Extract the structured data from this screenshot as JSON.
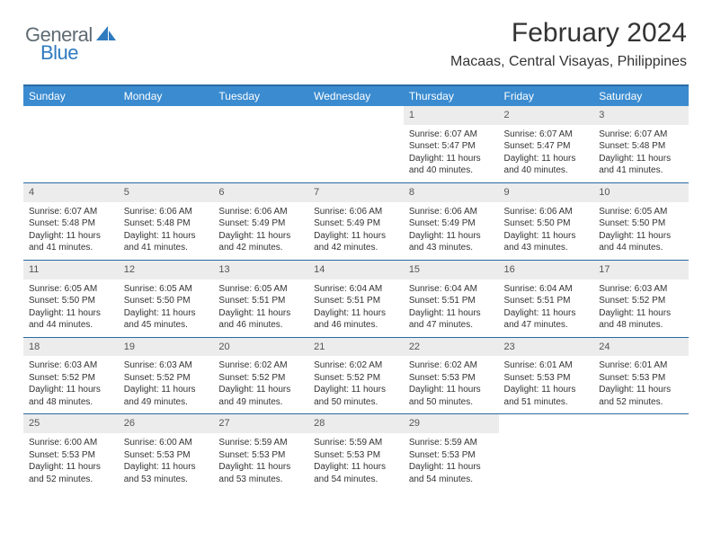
{
  "logo": {
    "general": "General",
    "blue": "Blue"
  },
  "title": "February 2024",
  "location": "Macaas, Central Visayas, Philippines",
  "colors": {
    "header_bg": "#3a8bd0",
    "header_border": "#2a6aa3",
    "daynum_bg": "#ececec",
    "text": "#333333",
    "logo_gray": "#5f6b73",
    "logo_blue": "#2f7bbf"
  },
  "weekdays": [
    "Sunday",
    "Monday",
    "Tuesday",
    "Wednesday",
    "Thursday",
    "Friday",
    "Saturday"
  ],
  "weeks": [
    {
      "nums": [
        "",
        "",
        "",
        "",
        "1",
        "2",
        "3"
      ],
      "cells": [
        null,
        null,
        null,
        null,
        {
          "sunrise": "Sunrise: 6:07 AM",
          "sunset": "Sunset: 5:47 PM",
          "day1": "Daylight: 11 hours",
          "day2": "and 40 minutes."
        },
        {
          "sunrise": "Sunrise: 6:07 AM",
          "sunset": "Sunset: 5:47 PM",
          "day1": "Daylight: 11 hours",
          "day2": "and 40 minutes."
        },
        {
          "sunrise": "Sunrise: 6:07 AM",
          "sunset": "Sunset: 5:48 PM",
          "day1": "Daylight: 11 hours",
          "day2": "and 41 minutes."
        }
      ]
    },
    {
      "nums": [
        "4",
        "5",
        "6",
        "7",
        "8",
        "9",
        "10"
      ],
      "cells": [
        {
          "sunrise": "Sunrise: 6:07 AM",
          "sunset": "Sunset: 5:48 PM",
          "day1": "Daylight: 11 hours",
          "day2": "and 41 minutes."
        },
        {
          "sunrise": "Sunrise: 6:06 AM",
          "sunset": "Sunset: 5:48 PM",
          "day1": "Daylight: 11 hours",
          "day2": "and 41 minutes."
        },
        {
          "sunrise": "Sunrise: 6:06 AM",
          "sunset": "Sunset: 5:49 PM",
          "day1": "Daylight: 11 hours",
          "day2": "and 42 minutes."
        },
        {
          "sunrise": "Sunrise: 6:06 AM",
          "sunset": "Sunset: 5:49 PM",
          "day1": "Daylight: 11 hours",
          "day2": "and 42 minutes."
        },
        {
          "sunrise": "Sunrise: 6:06 AM",
          "sunset": "Sunset: 5:49 PM",
          "day1": "Daylight: 11 hours",
          "day2": "and 43 minutes."
        },
        {
          "sunrise": "Sunrise: 6:06 AM",
          "sunset": "Sunset: 5:50 PM",
          "day1": "Daylight: 11 hours",
          "day2": "and 43 minutes."
        },
        {
          "sunrise": "Sunrise: 6:05 AM",
          "sunset": "Sunset: 5:50 PM",
          "day1": "Daylight: 11 hours",
          "day2": "and 44 minutes."
        }
      ]
    },
    {
      "nums": [
        "11",
        "12",
        "13",
        "14",
        "15",
        "16",
        "17"
      ],
      "cells": [
        {
          "sunrise": "Sunrise: 6:05 AM",
          "sunset": "Sunset: 5:50 PM",
          "day1": "Daylight: 11 hours",
          "day2": "and 44 minutes."
        },
        {
          "sunrise": "Sunrise: 6:05 AM",
          "sunset": "Sunset: 5:50 PM",
          "day1": "Daylight: 11 hours",
          "day2": "and 45 minutes."
        },
        {
          "sunrise": "Sunrise: 6:05 AM",
          "sunset": "Sunset: 5:51 PM",
          "day1": "Daylight: 11 hours",
          "day2": "and 46 minutes."
        },
        {
          "sunrise": "Sunrise: 6:04 AM",
          "sunset": "Sunset: 5:51 PM",
          "day1": "Daylight: 11 hours",
          "day2": "and 46 minutes."
        },
        {
          "sunrise": "Sunrise: 6:04 AM",
          "sunset": "Sunset: 5:51 PM",
          "day1": "Daylight: 11 hours",
          "day2": "and 47 minutes."
        },
        {
          "sunrise": "Sunrise: 6:04 AM",
          "sunset": "Sunset: 5:51 PM",
          "day1": "Daylight: 11 hours",
          "day2": "and 47 minutes."
        },
        {
          "sunrise": "Sunrise: 6:03 AM",
          "sunset": "Sunset: 5:52 PM",
          "day1": "Daylight: 11 hours",
          "day2": "and 48 minutes."
        }
      ]
    },
    {
      "nums": [
        "18",
        "19",
        "20",
        "21",
        "22",
        "23",
        "24"
      ],
      "cells": [
        {
          "sunrise": "Sunrise: 6:03 AM",
          "sunset": "Sunset: 5:52 PM",
          "day1": "Daylight: 11 hours",
          "day2": "and 48 minutes."
        },
        {
          "sunrise": "Sunrise: 6:03 AM",
          "sunset": "Sunset: 5:52 PM",
          "day1": "Daylight: 11 hours",
          "day2": "and 49 minutes."
        },
        {
          "sunrise": "Sunrise: 6:02 AM",
          "sunset": "Sunset: 5:52 PM",
          "day1": "Daylight: 11 hours",
          "day2": "and 49 minutes."
        },
        {
          "sunrise": "Sunrise: 6:02 AM",
          "sunset": "Sunset: 5:52 PM",
          "day1": "Daylight: 11 hours",
          "day2": "and 50 minutes."
        },
        {
          "sunrise": "Sunrise: 6:02 AM",
          "sunset": "Sunset: 5:53 PM",
          "day1": "Daylight: 11 hours",
          "day2": "and 50 minutes."
        },
        {
          "sunrise": "Sunrise: 6:01 AM",
          "sunset": "Sunset: 5:53 PM",
          "day1": "Daylight: 11 hours",
          "day2": "and 51 minutes."
        },
        {
          "sunrise": "Sunrise: 6:01 AM",
          "sunset": "Sunset: 5:53 PM",
          "day1": "Daylight: 11 hours",
          "day2": "and 52 minutes."
        }
      ]
    },
    {
      "nums": [
        "25",
        "26",
        "27",
        "28",
        "29",
        "",
        ""
      ],
      "cells": [
        {
          "sunrise": "Sunrise: 6:00 AM",
          "sunset": "Sunset: 5:53 PM",
          "day1": "Daylight: 11 hours",
          "day2": "and 52 minutes."
        },
        {
          "sunrise": "Sunrise: 6:00 AM",
          "sunset": "Sunset: 5:53 PM",
          "day1": "Daylight: 11 hours",
          "day2": "and 53 minutes."
        },
        {
          "sunrise": "Sunrise: 5:59 AM",
          "sunset": "Sunset: 5:53 PM",
          "day1": "Daylight: 11 hours",
          "day2": "and 53 minutes."
        },
        {
          "sunrise": "Sunrise: 5:59 AM",
          "sunset": "Sunset: 5:53 PM",
          "day1": "Daylight: 11 hours",
          "day2": "and 54 minutes."
        },
        {
          "sunrise": "Sunrise: 5:59 AM",
          "sunset": "Sunset: 5:53 PM",
          "day1": "Daylight: 11 hours",
          "day2": "and 54 minutes."
        },
        null,
        null
      ]
    }
  ]
}
